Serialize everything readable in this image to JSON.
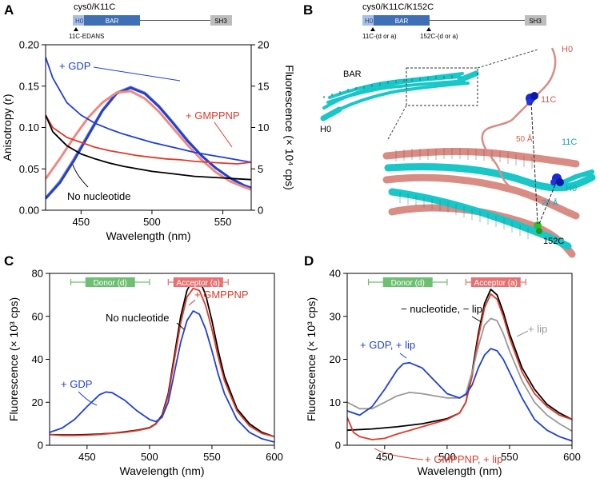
{
  "panels": {
    "A": {
      "letter": "A",
      "construct": "cys0/K11C",
      "domain_h0": "H0",
      "domain_bar": "BAR",
      "domain_sh3": "SH3",
      "label_site": "11C-EDANS"
    },
    "B": {
      "letter": "B",
      "construct": "cys0/K11C/K152C",
      "domain_h0": "H0",
      "domain_bar": "BAR",
      "domain_sh3": "SH3",
      "site1": "11C-(d or a)",
      "site2": "152C-(d or a)",
      "struct_bar": "BAR",
      "struct_h0_left": "H0",
      "struct_h0_right_top": "H0",
      "struct_h0_right": "H0",
      "res_11c_top": "11C",
      "res_11c": "11C",
      "res_152c": "152C",
      "dist1": "50 Å",
      "dist2": "26 Å"
    },
    "C": {
      "letter": "C",
      "donor": "Donor (d)",
      "acceptor": "Acceptor (a)"
    },
    "D": {
      "letter": "D",
      "donor": "Donor (d)",
      "acceptor": "Acceptor (a)"
    }
  },
  "colors": {
    "blue": "#1f3fd8",
    "red": "#e03a2a",
    "black": "#000000",
    "gray": "#999999",
    "pink": "#f08a80",
    "cyan": "#19c6c8",
    "salmon": "#d98c84",
    "donor": "#6dbf72",
    "acceptor": "#e97070",
    "domain_light": "#a8c0e4",
    "domain_dark": "#3f6fb5",
    "domain_gray": "#bdbdbd"
  },
  "chart_data": [
    {
      "panel": "A",
      "type": "line",
      "xlabel": "Wavelength (nm)",
      "ylabel": "Anisotropy (r)",
      "y2label": "Fluorescence (× 10⁴ cps)",
      "xlim": [
        425,
        570
      ],
      "ylim": [
        0,
        0.2
      ],
      "y2lim": [
        0,
        20
      ],
      "xticks": [
        450,
        500,
        550
      ],
      "yticks": [
        0.0,
        0.05,
        0.1,
        0.15,
        0.2
      ],
      "y2ticks": [
        0,
        5,
        10,
        15,
        20
      ],
      "annotations": [
        "+ GDP",
        "+ GMPPNP",
        "No nucleotide"
      ],
      "series": [
        {
          "name": "Fluorescence no nucleotide",
          "axis": "right",
          "color": "gray",
          "x": [
            425,
            435,
            445,
            455,
            465,
            475,
            485,
            495,
            505,
            515,
            525,
            535,
            545,
            555,
            565,
            570
          ],
          "values": [
            1.5,
            3.5,
            6.2,
            9.2,
            12.1,
            14.2,
            14.9,
            14.2,
            12.6,
            10.6,
            8.5,
            6.6,
            5.1,
            3.9,
            3.0,
            2.7
          ]
        },
        {
          "name": "Fluorescence + GDP",
          "axis": "right",
          "color": "blue",
          "x": [
            425,
            435,
            445,
            455,
            465,
            475,
            485,
            495,
            505,
            515,
            525,
            535,
            545,
            555,
            565,
            570
          ],
          "values": [
            1.4,
            3.3,
            6.0,
            9.0,
            12.0,
            14.1,
            14.8,
            14.1,
            12.5,
            10.5,
            8.4,
            6.6,
            5.1,
            3.9,
            3.0,
            2.7
          ]
        },
        {
          "name": "Fluorescence + GMPPNP",
          "axis": "right",
          "color": "pink",
          "x": [
            425,
            435,
            445,
            455,
            465,
            475,
            485,
            495,
            505,
            515,
            525,
            535,
            545,
            555,
            565,
            570
          ],
          "values": [
            3.8,
            6.2,
            8.8,
            11.2,
            13.0,
            14.2,
            14.4,
            13.5,
            11.9,
            9.9,
            7.9,
            6.1,
            4.6,
            3.5,
            2.8,
            2.5
          ]
        },
        {
          "name": "Anisotropy + GDP",
          "axis": "left",
          "color": "blue",
          "x": [
            425,
            430,
            440,
            450,
            460,
            470,
            480,
            490,
            500,
            510,
            520,
            530,
            540,
            550,
            560,
            570
          ],
          "values": [
            0.185,
            0.16,
            0.13,
            0.115,
            0.105,
            0.098,
            0.092,
            0.087,
            0.082,
            0.078,
            0.074,
            0.07,
            0.067,
            0.064,
            0.061,
            0.058
          ]
        },
        {
          "name": "Anisotropy + GMPPNP",
          "axis": "left",
          "color": "red",
          "x": [
            425,
            430,
            440,
            450,
            460,
            470,
            480,
            490,
            500,
            510,
            520,
            530,
            540,
            550,
            560,
            570
          ],
          "values": [
            0.115,
            0.1,
            0.088,
            0.082,
            0.076,
            0.072,
            0.069,
            0.066,
            0.064,
            0.062,
            0.061,
            0.059,
            0.058,
            0.057,
            0.056,
            0.058
          ]
        },
        {
          "name": "Anisotropy no nucleotide",
          "axis": "left",
          "color": "black",
          "x": [
            425,
            430,
            440,
            450,
            460,
            470,
            480,
            490,
            500,
            510,
            520,
            530,
            540,
            550,
            560,
            570
          ],
          "values": [
            0.115,
            0.095,
            0.078,
            0.068,
            0.062,
            0.057,
            0.053,
            0.05,
            0.047,
            0.045,
            0.043,
            0.041,
            0.04,
            0.039,
            0.038,
            0.037
          ]
        }
      ]
    },
    {
      "panel": "C",
      "type": "line",
      "xlabel": "Wavelength (nm)",
      "ylabel": "Fluorescence (× 10³ cps)",
      "xlim": [
        420,
        600
      ],
      "ylim": [
        0,
        80
      ],
      "xticks": [
        450,
        500,
        550,
        600
      ],
      "yticks": [
        0,
        20,
        40,
        60,
        80
      ],
      "annotations": [
        "+ GMPPNP",
        "No nucleotide",
        "+ GDP"
      ],
      "donor_range": [
        437,
        500
      ],
      "acceptor_range": [
        515,
        563
      ],
      "series": [
        {
          "name": "No nucleotide",
          "color": "black",
          "x": [
            420,
            430,
            440,
            450,
            460,
            470,
            480,
            490,
            500,
            505,
            510,
            515,
            520,
            525,
            530,
            535,
            540,
            545,
            550,
            555,
            560,
            570,
            580,
            590,
            600
          ],
          "values": [
            5,
            4.8,
            4.8,
            5,
            5.2,
            5.6,
            6.2,
            7,
            8.2,
            10,
            14,
            24,
            42,
            60,
            72,
            77.5,
            77,
            70,
            58,
            44,
            32,
            17,
            10,
            6,
            4
          ]
        },
        {
          "name": "+ GMPPNP",
          "color": "red",
          "x": [
            420,
            430,
            440,
            450,
            460,
            470,
            480,
            490,
            500,
            505,
            510,
            515,
            520,
            525,
            530,
            535,
            540,
            545,
            550,
            555,
            560,
            570,
            580,
            590,
            600
          ],
          "values": [
            5,
            4.5,
            4.5,
            4.7,
            5,
            5.5,
            6,
            6.8,
            8,
            9.8,
            13.5,
            23,
            40,
            57,
            69,
            73,
            72,
            65,
            54,
            41,
            30,
            16,
            9,
            5.5,
            4
          ]
        },
        {
          "name": "+ GDP",
          "color": "blue",
          "x": [
            420,
            430,
            440,
            450,
            460,
            465,
            470,
            480,
            490,
            500,
            505,
            510,
            515,
            520,
            525,
            530,
            535,
            540,
            545,
            550,
            555,
            560,
            570,
            580,
            590,
            600
          ],
          "values": [
            6,
            8,
            12,
            18,
            23.5,
            24.8,
            24.5,
            21,
            16,
            12,
            11,
            13,
            20,
            34,
            48,
            58,
            62.5,
            61,
            54,
            44,
            33,
            24,
            12,
            6,
            3,
            1.5
          ]
        }
      ]
    },
    {
      "panel": "D",
      "type": "line",
      "xlabel": "Wavelength (nm)",
      "ylabel": "Fluorescence (× 10³ cps)",
      "xlim": [
        420,
        600
      ],
      "ylim": [
        0,
        40
      ],
      "xticks": [
        450,
        500,
        550,
        600
      ],
      "yticks": [
        0,
        10,
        20,
        30,
        40
      ],
      "annotations": [
        "− nucleotide, − lip",
        "+ lip",
        "+ GDP, + lip",
        "+ GMPPNP, + lip"
      ],
      "donor_range": [
        437,
        500
      ],
      "acceptor_range": [
        515,
        563
      ],
      "series": [
        {
          "name": "− nucleotide, − lip",
          "color": "black",
          "x": [
            420,
            440,
            460,
            480,
            500,
            510,
            515,
            520,
            525,
            530,
            535,
            540,
            545,
            550,
            560,
            570,
            580,
            590,
            600
          ],
          "values": [
            3.5,
            3.8,
            4.3,
            5,
            6.2,
            7.5,
            10,
            17,
            26,
            33,
            36.3,
            35,
            31,
            26,
            18,
            13,
            9.5,
            7.5,
            6
          ]
        },
        {
          "name": "+ GMPPNP, + lip",
          "color": "red",
          "x": [
            420,
            425,
            430,
            440,
            450,
            460,
            480,
            500,
            510,
            515,
            520,
            525,
            530,
            535,
            540,
            545,
            550,
            560,
            570,
            580,
            590,
            600
          ],
          "values": [
            6.5,
            3,
            2,
            1.3,
            1.6,
            2.6,
            4.3,
            6,
            7.5,
            10,
            16,
            25,
            32,
            35.2,
            34,
            30,
            25,
            17,
            12,
            9,
            7,
            6
          ]
        },
        {
          "name": "+ lip",
          "color": "gray",
          "x": [
            420,
            430,
            440,
            450,
            460,
            470,
            480,
            490,
            500,
            510,
            515,
            520,
            525,
            530,
            535,
            540,
            545,
            550,
            560,
            570,
            580,
            590,
            600
          ],
          "values": [
            10,
            8.5,
            8.5,
            10,
            11.5,
            12.3,
            12,
            11.5,
            11,
            11,
            12,
            17,
            23,
            28,
            29.5,
            29,
            26,
            22,
            15,
            10,
            7,
            5,
            3.3
          ]
        },
        {
          "name": "+ GDP, + lip",
          "color": "blue",
          "x": [
            420,
            430,
            440,
            450,
            460,
            465,
            470,
            480,
            490,
            500,
            510,
            515,
            520,
            525,
            530,
            535,
            540,
            545,
            550,
            560,
            570,
            580,
            590,
            600
          ],
          "values": [
            8,
            7,
            9,
            13,
            17.5,
            19,
            19.2,
            18,
            15,
            12,
            11,
            11.8,
            14,
            18,
            21,
            22.5,
            22,
            20,
            17,
            11,
            6,
            3.5,
            2,
            1
          ]
        }
      ]
    }
  ]
}
